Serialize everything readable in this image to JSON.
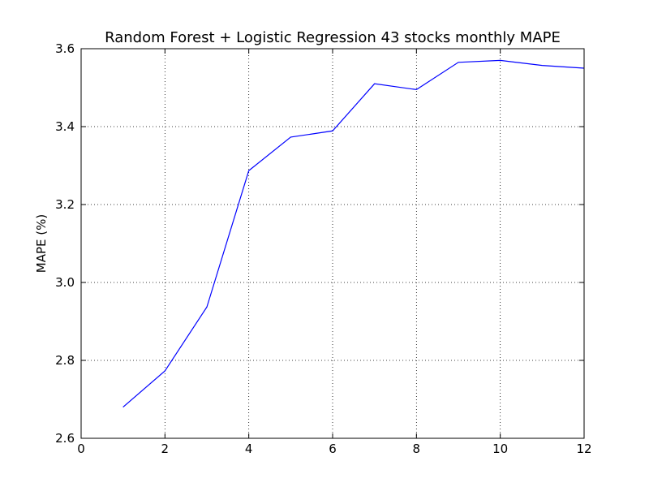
{
  "chart_data": {
    "type": "line",
    "title": "Random Forest + Logistic Regression 43 stocks monthly MAPE",
    "xlabel": "",
    "ylabel": "MAPE (%)",
    "xlim": [
      0,
      12
    ],
    "ylim": [
      2.6,
      3.6
    ],
    "x_ticks": [
      "0",
      "2",
      "4",
      "6",
      "8",
      "10",
      "12"
    ],
    "y_ticks": [
      "2.6",
      "2.8",
      "3.0",
      "3.2",
      "3.4",
      "3.6"
    ],
    "grid": true,
    "series": [
      {
        "color": "#0000ff",
        "x": [
          1,
          2,
          3,
          4,
          5,
          6,
          7,
          8,
          9,
          10,
          11,
          12
        ],
        "y": [
          2.68,
          2.773,
          2.937,
          3.287,
          3.373,
          3.389,
          3.51,
          3.495,
          3.565,
          3.57,
          3.557,
          3.55
        ]
      }
    ]
  }
}
